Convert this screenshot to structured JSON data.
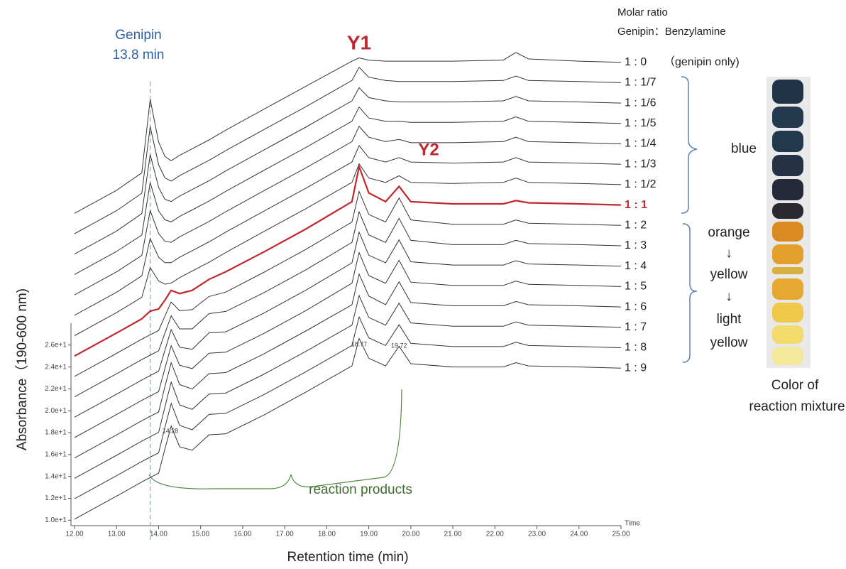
{
  "chart_data": {
    "type": "line",
    "x_label": "Retention time (min)",
    "y_label": "Absorbance（190-600 nm)",
    "x_unit_label": "Time",
    "xlim": [
      12,
      25
    ],
    "xticks": [
      {
        "value": 12,
        "label": "12.00"
      },
      {
        "value": 13,
        "label": "13.00"
      },
      {
        "value": 14,
        "label": "14.00"
      },
      {
        "value": 15,
        "label": "15.00"
      },
      {
        "value": 16,
        "label": "16.00"
      },
      {
        "value": 17,
        "label": "17.00"
      },
      {
        "value": 18,
        "label": "18.00"
      },
      {
        "value": 19,
        "label": "19.00"
      },
      {
        "value": 20,
        "label": "20.00"
      },
      {
        "value": 21,
        "label": "21.00"
      },
      {
        "value": 22,
        "label": "22.00"
      },
      {
        "value": 23,
        "label": "23.00"
      },
      {
        "value": 24,
        "label": "24.00"
      },
      {
        "value": 25,
        "label": "25.00"
      }
    ],
    "ylim": [
      9.5,
      28
    ],
    "yticks": [
      {
        "value": 10,
        "label": "1.0e+1"
      },
      {
        "value": 12,
        "label": "1.2e+1"
      },
      {
        "value": 14,
        "label": "1.4e+1"
      },
      {
        "value": 16,
        "label": "1.6e+1"
      },
      {
        "value": 18,
        "label": "1.8e+1"
      },
      {
        "value": 20,
        "label": "2.0e+1"
      },
      {
        "value": 22,
        "label": "2.2e+1"
      },
      {
        "value": 24,
        "label": "2.4e+1"
      },
      {
        "value": 26,
        "label": "2.6e+1"
      }
    ],
    "legend_title": [
      "Molar ratio",
      "Genipin：Benzylamine"
    ],
    "series_note": "（genipin only)",
    "genipin_label": [
      "Genipin",
      "13.8 min"
    ],
    "genipin_rt": 13.8,
    "peak_names": [
      "Y1",
      "Y2"
    ],
    "peak_labels": [
      14.28,
      18.77,
      19.72
    ],
    "products_label": "reaction products",
    "groups": [
      {
        "lines": [
          "blue"
        ]
      },
      {
        "lines": [
          "orange",
          "↓",
          "yellow",
          "↓",
          "light",
          "yellow"
        ]
      }
    ],
    "swatch_caption": [
      "Color of",
      "reaction mixture"
    ],
    "x": [
      12,
      13,
      13.6,
      13.8,
      14.0,
      14.15,
      14.3,
      14.5,
      14.8,
      15.2,
      15.6,
      16.5,
      17.5,
      18.6,
      18.77,
      19.0,
      19.4,
      19.72,
      20.0,
      21,
      22.2,
      22.5,
      22.8,
      24,
      25
    ],
    "series": [
      {
        "name": "1 : 0",
        "color": "#333333",
        "values": [
          10.1,
          12.2,
          13.8,
          20.5,
          16.6,
          15.3,
          14.9,
          15.4,
          16.0,
          16.8,
          17.7,
          19.6,
          21.7,
          24.0,
          24.3,
          24.1,
          24.0,
          24.0,
          24.0,
          24.0,
          24.1,
          24.8,
          24.2,
          24.0,
          23.9
        ]
      },
      {
        "name": "1 : 1/7",
        "color": "#333333",
        "values": [
          10.1,
          12.2,
          13.8,
          19.9,
          16.4,
          15.2,
          14.9,
          15.4,
          16.0,
          16.8,
          17.7,
          19.6,
          21.7,
          24.1,
          25.3,
          24.4,
          24.1,
          24.0,
          24.0,
          24.0,
          24.1,
          24.5,
          24.1,
          24.0,
          23.9
        ]
      },
      {
        "name": "1 : 1/6",
        "color": "#333333",
        "values": [
          10.1,
          12.2,
          13.8,
          19.2,
          16.2,
          15.1,
          14.9,
          15.4,
          16.0,
          16.8,
          17.7,
          19.6,
          21.7,
          24.1,
          25.3,
          24.4,
          24.1,
          24.0,
          24.0,
          24.0,
          24.1,
          24.5,
          24.1,
          24.0,
          23.9
        ]
      },
      {
        "name": "1 : 1/5",
        "color": "#333333",
        "values": [
          10.1,
          12.2,
          13.7,
          18.5,
          15.9,
          15.1,
          14.9,
          15.4,
          16.0,
          16.8,
          17.7,
          19.6,
          21.7,
          24.1,
          25.4,
          24.4,
          24.1,
          24.1,
          24.0,
          24.0,
          24.1,
          24.5,
          24.1,
          24.0,
          23.9
        ]
      },
      {
        "name": "1 : 1/4",
        "color": "#333333",
        "values": [
          10.1,
          12.2,
          13.7,
          17.8,
          15.7,
          15.0,
          14.9,
          15.4,
          16.0,
          16.8,
          17.7,
          19.6,
          21.7,
          24.1,
          25.5,
          24.5,
          24.1,
          24.3,
          24.0,
          24.0,
          24.1,
          24.5,
          24.1,
          24.0,
          23.9
        ]
      },
      {
        "name": "1 : 1/3",
        "color": "#333333",
        "values": [
          10.1,
          12.2,
          13.7,
          17.1,
          15.4,
          14.9,
          14.9,
          15.4,
          16.0,
          16.8,
          17.7,
          19.6,
          21.7,
          24.1,
          25.6,
          24.5,
          24.1,
          24.5,
          24.1,
          24.0,
          24.1,
          24.5,
          24.1,
          24.0,
          23.9
        ]
      },
      {
        "name": "1 : 1/2",
        "color": "#333333",
        "values": [
          10.1,
          12.2,
          13.6,
          16.3,
          15.1,
          14.8,
          14.9,
          15.4,
          16.0,
          16.8,
          17.7,
          19.6,
          21.7,
          24.1,
          25.8,
          24.5,
          24.1,
          24.7,
          24.1,
          24.0,
          24.1,
          24.5,
          24.1,
          24.0,
          23.9
        ]
      },
      {
        "name": "1 : 1",
        "color": "#c0282d",
        "values": [
          10.1,
          12.2,
          13.5,
          14.2,
          14.4,
          15.2,
          16.1,
          15.8,
          16.1,
          17.1,
          17.8,
          19.6,
          21.7,
          24.2,
          27.4,
          25.0,
          24.2,
          25.6,
          24.2,
          24.0,
          24.0,
          24.3,
          24.1,
          24.0,
          23.9
        ]
      },
      {
        "name": "1 : 2",
        "color": "#333333",
        "values": [
          10.1,
          12.2,
          13.5,
          13.9,
          14.3,
          15.6,
          16.9,
          16.1,
          16.2,
          17.4,
          17.8,
          19.6,
          21.7,
          24.2,
          27.0,
          24.9,
          24.2,
          26.4,
          24.4,
          24.0,
          24.0,
          24.4,
          24.1,
          24.0,
          23.9
        ]
      },
      {
        "name": "1 : 3",
        "color": "#333333",
        "values": [
          10.1,
          12.2,
          13.5,
          13.9,
          14.3,
          15.9,
          17.5,
          16.3,
          16.3,
          17.7,
          17.9,
          19.6,
          21.7,
          24.2,
          27.0,
          24.9,
          24.2,
          26.4,
          24.4,
          24.0,
          24.0,
          24.4,
          24.1,
          24.0,
          23.9
        ]
      },
      {
        "name": "1 : 4",
        "color": "#333333",
        "values": [
          10.1,
          12.2,
          13.5,
          13.9,
          14.3,
          16.2,
          18.1,
          16.5,
          16.3,
          17.8,
          17.9,
          19.6,
          21.7,
          24.2,
          27.0,
          24.9,
          24.2,
          26.3,
          24.3,
          24.0,
          24.0,
          24.4,
          24.1,
          24.0,
          23.9
        ]
      },
      {
        "name": "1 : 5",
        "color": "#333333",
        "values": [
          10.1,
          12.2,
          13.5,
          13.9,
          14.3,
          16.4,
          18.5,
          16.7,
          16.4,
          17.8,
          17.9,
          19.6,
          21.7,
          24.2,
          27.0,
          24.9,
          24.2,
          26.3,
          24.3,
          24.0,
          24.0,
          24.4,
          24.1,
          24.0,
          23.9
        ]
      },
      {
        "name": "1 : 6",
        "color": "#333333",
        "values": [
          10.1,
          12.2,
          13.5,
          13.9,
          14.3,
          16.6,
          18.8,
          16.8,
          16.4,
          17.8,
          17.9,
          19.6,
          21.7,
          24.1,
          26.9,
          24.9,
          24.1,
          26.2,
          24.3,
          24.0,
          24.0,
          24.4,
          24.1,
          24.0,
          23.9
        ]
      },
      {
        "name": "1 : 7",
        "color": "#333333",
        "values": [
          10.1,
          12.2,
          13.5,
          13.9,
          14.3,
          16.6,
          18.9,
          16.8,
          16.4,
          17.8,
          17.9,
          19.6,
          21.7,
          24.1,
          26.8,
          24.8,
          24.1,
          26.1,
          24.3,
          24.0,
          24.0,
          24.4,
          24.1,
          24.0,
          23.9
        ]
      },
      {
        "name": "1 : 8",
        "color": "#333333",
        "values": [
          10.1,
          12.2,
          13.5,
          13.9,
          14.3,
          16.6,
          18.8,
          16.8,
          16.4,
          17.8,
          17.9,
          19.6,
          21.7,
          24.1,
          26.7,
          24.8,
          24.1,
          26.0,
          24.3,
          24.0,
          24.0,
          24.4,
          24.1,
          24.0,
          23.9
        ]
      },
      {
        "name": "1 : 9",
        "color": "#333333",
        "values": [
          10.1,
          12.2,
          13.5,
          13.9,
          14.3,
          16.5,
          18.6,
          16.7,
          16.4,
          17.8,
          17.9,
          19.6,
          21.7,
          24.1,
          26.6,
          24.8,
          24.1,
          25.9,
          24.3,
          24.0,
          24.0,
          24.4,
          24.1,
          24.0,
          23.9
        ]
      }
    ]
  }
}
